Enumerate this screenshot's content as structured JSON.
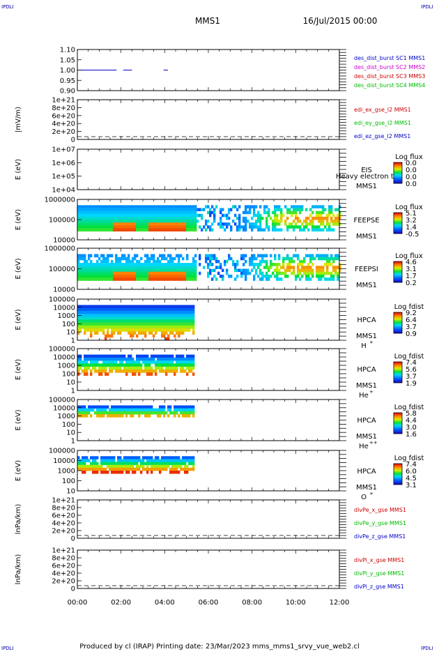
{
  "corners": {
    "tl": "IPDLI",
    "tr": "IPDLI",
    "bl": "IPDLI",
    "br": "IPDLI"
  },
  "header": {
    "title": "MMS1",
    "datetime": "16/Jul/2015 00:00"
  },
  "footer": {
    "text": "Produced by cl (IRAP)   Printing date: 23/Mar/2023   mms_mms1_srvy_vue_web2.cl"
  },
  "colors": {
    "blue": "#0000cc",
    "red": "#cc0000",
    "green": "#00bb00",
    "magenta": "#cc00cc"
  },
  "time_axis": {
    "ticks": [
      "00:00",
      "02:00",
      "04:00",
      "06:00",
      "08:00",
      "10:00",
      "12:00"
    ]
  },
  "chart_data": [
    {
      "type": "line",
      "ylabel": "",
      "yticks": [
        "1.10",
        "1.05",
        "1.00",
        "0.95",
        "0.90"
      ],
      "ylim": [
        0.9,
        1.1
      ],
      "legend": [
        {
          "text": "des_dist_burst SC1 MMS1",
          "color": "#0000cc"
        },
        {
          "text": "des_dist_burst SC2 MMS2",
          "color": "#cc00cc"
        },
        {
          "text": "des_dist_burst SC3 MMS3",
          "color": "#cc0000"
        },
        {
          "text": "des_dist_burst SC4 MMS4",
          "color": "#00bb00"
        }
      ],
      "segments": [
        {
          "start": 0.0,
          "end": 1.8,
          "value": 1.0
        },
        {
          "start": 2.1,
          "end": 2.5,
          "value": 1.0
        },
        {
          "start": 3.95,
          "end": 4.15,
          "value": 1.0
        }
      ]
    },
    {
      "type": "line",
      "ylabel": "|mV/m)",
      "yticks": [
        "1e+21",
        "8e+20",
        "6e+20",
        "4e+20",
        "2e+20",
        "0"
      ],
      "legend": [
        {
          "text": "edi_ex_gse_l2 MMS1",
          "color": "#cc0000"
        },
        {
          "text": "edi_ey_gse_l2 MMS1",
          "color": "#00bb00"
        },
        {
          "text": "edi_ez_gse_l2 MMS1",
          "color": "#0000cc"
        }
      ]
    },
    {
      "type": "heatmap",
      "ylabel": "E (eV)",
      "yticks": [
        "1e+07",
        "1e+06",
        "1e+05",
        "1e+04"
      ],
      "cbar_title": "Log flux",
      "cbar_ticks": [
        "0.0",
        "0.0",
        "0.0",
        "0.0"
      ],
      "labels": [
        "EIS",
        "MMS1"
      ],
      "overlay": "Heavy electron to"
    },
    {
      "type": "heatmap",
      "ylabel": "E (eV)",
      "yticks": [
        "1000000",
        "100000",
        "10000"
      ],
      "cbar_title": "Log flux",
      "cbar_ticks": [
        "5.1",
        "3.2",
        "1.4",
        "-0.5"
      ],
      "labels": [
        "FEEPSE",
        "MMS1"
      ]
    },
    {
      "type": "heatmap",
      "ylabel": "E (eV)",
      "yticks": [
        "1000000",
        "100000",
        "10000"
      ],
      "cbar_title": "Log flux",
      "cbar_ticks": [
        "4.6",
        "3.1",
        "1.7",
        "0.2"
      ],
      "labels": [
        "FEEPSI",
        "MMS1"
      ]
    },
    {
      "type": "heatmap",
      "ylabel": "E (eV)",
      "yticks": [
        "100000",
        "10000",
        "1000",
        "100",
        "10",
        "1"
      ],
      "cbar_title": "Log fdist",
      "cbar_ticks": [
        "9.2",
        "6.4",
        "3.7",
        "0.9"
      ],
      "labels": [
        "HPCA",
        "MMS1"
      ],
      "species": "H",
      "charge": "+"
    },
    {
      "type": "heatmap",
      "ylabel": "E (eV)",
      "yticks": [
        "100000",
        "10000",
        "1000",
        "100",
        "10",
        "1"
      ],
      "cbar_title": "Log fdist",
      "cbar_ticks": [
        "7.4",
        "5.6",
        "3.7",
        "1.9"
      ],
      "labels": [
        "HPCA",
        "MMS1"
      ],
      "species": "He",
      "charge": "+"
    },
    {
      "type": "heatmap",
      "ylabel": "E (eV)",
      "yticks": [
        "100000",
        "10000",
        "1000",
        "100",
        "10",
        "1"
      ],
      "cbar_title": "Log fdist",
      "cbar_ticks": [
        "5.8",
        "4.4",
        "3.0",
        "1.6"
      ],
      "labels": [
        "HPCA",
        "MMS1"
      ],
      "species": "He",
      "charge": "++"
    },
    {
      "type": "heatmap",
      "ylabel": "E (eV)",
      "yticks": [
        "100000",
        "10000",
        "1000",
        "100",
        "10"
      ],
      "cbar_title": "Log fdist",
      "cbar_ticks": [
        "7.4",
        "6.0",
        "4.5",
        "3.1"
      ],
      "labels": [
        "HPCA",
        "MMS1"
      ],
      "species": "O",
      "charge": "+"
    },
    {
      "type": "line",
      "ylabel": "lnPa/km)",
      "yticks": [
        "1e+21",
        "8e+20",
        "6e+20",
        "4e+20",
        "2e+20",
        "0"
      ],
      "legend": [
        {
          "text": "divPe_x_gse MMS1",
          "color": "#cc0000"
        },
        {
          "text": "divPe_y_gse MMS1",
          "color": "#00bb00"
        },
        {
          "text": "divPe_z_gse MMS1",
          "color": "#0000cc"
        }
      ]
    },
    {
      "type": "line",
      "ylabel": "lnPa/km)",
      "yticks": [
        "1e+21",
        "8e+20",
        "6e+20",
        "4e+20",
        "2e+20",
        "0"
      ],
      "legend": [
        {
          "text": "divPi_x_gse MMS1",
          "color": "#cc0000"
        },
        {
          "text": "divPi_y_gse MMS1",
          "color": "#00bb00"
        },
        {
          "text": "divPi_z_gse MMS1",
          "color": "#0000cc"
        }
      ]
    }
  ]
}
